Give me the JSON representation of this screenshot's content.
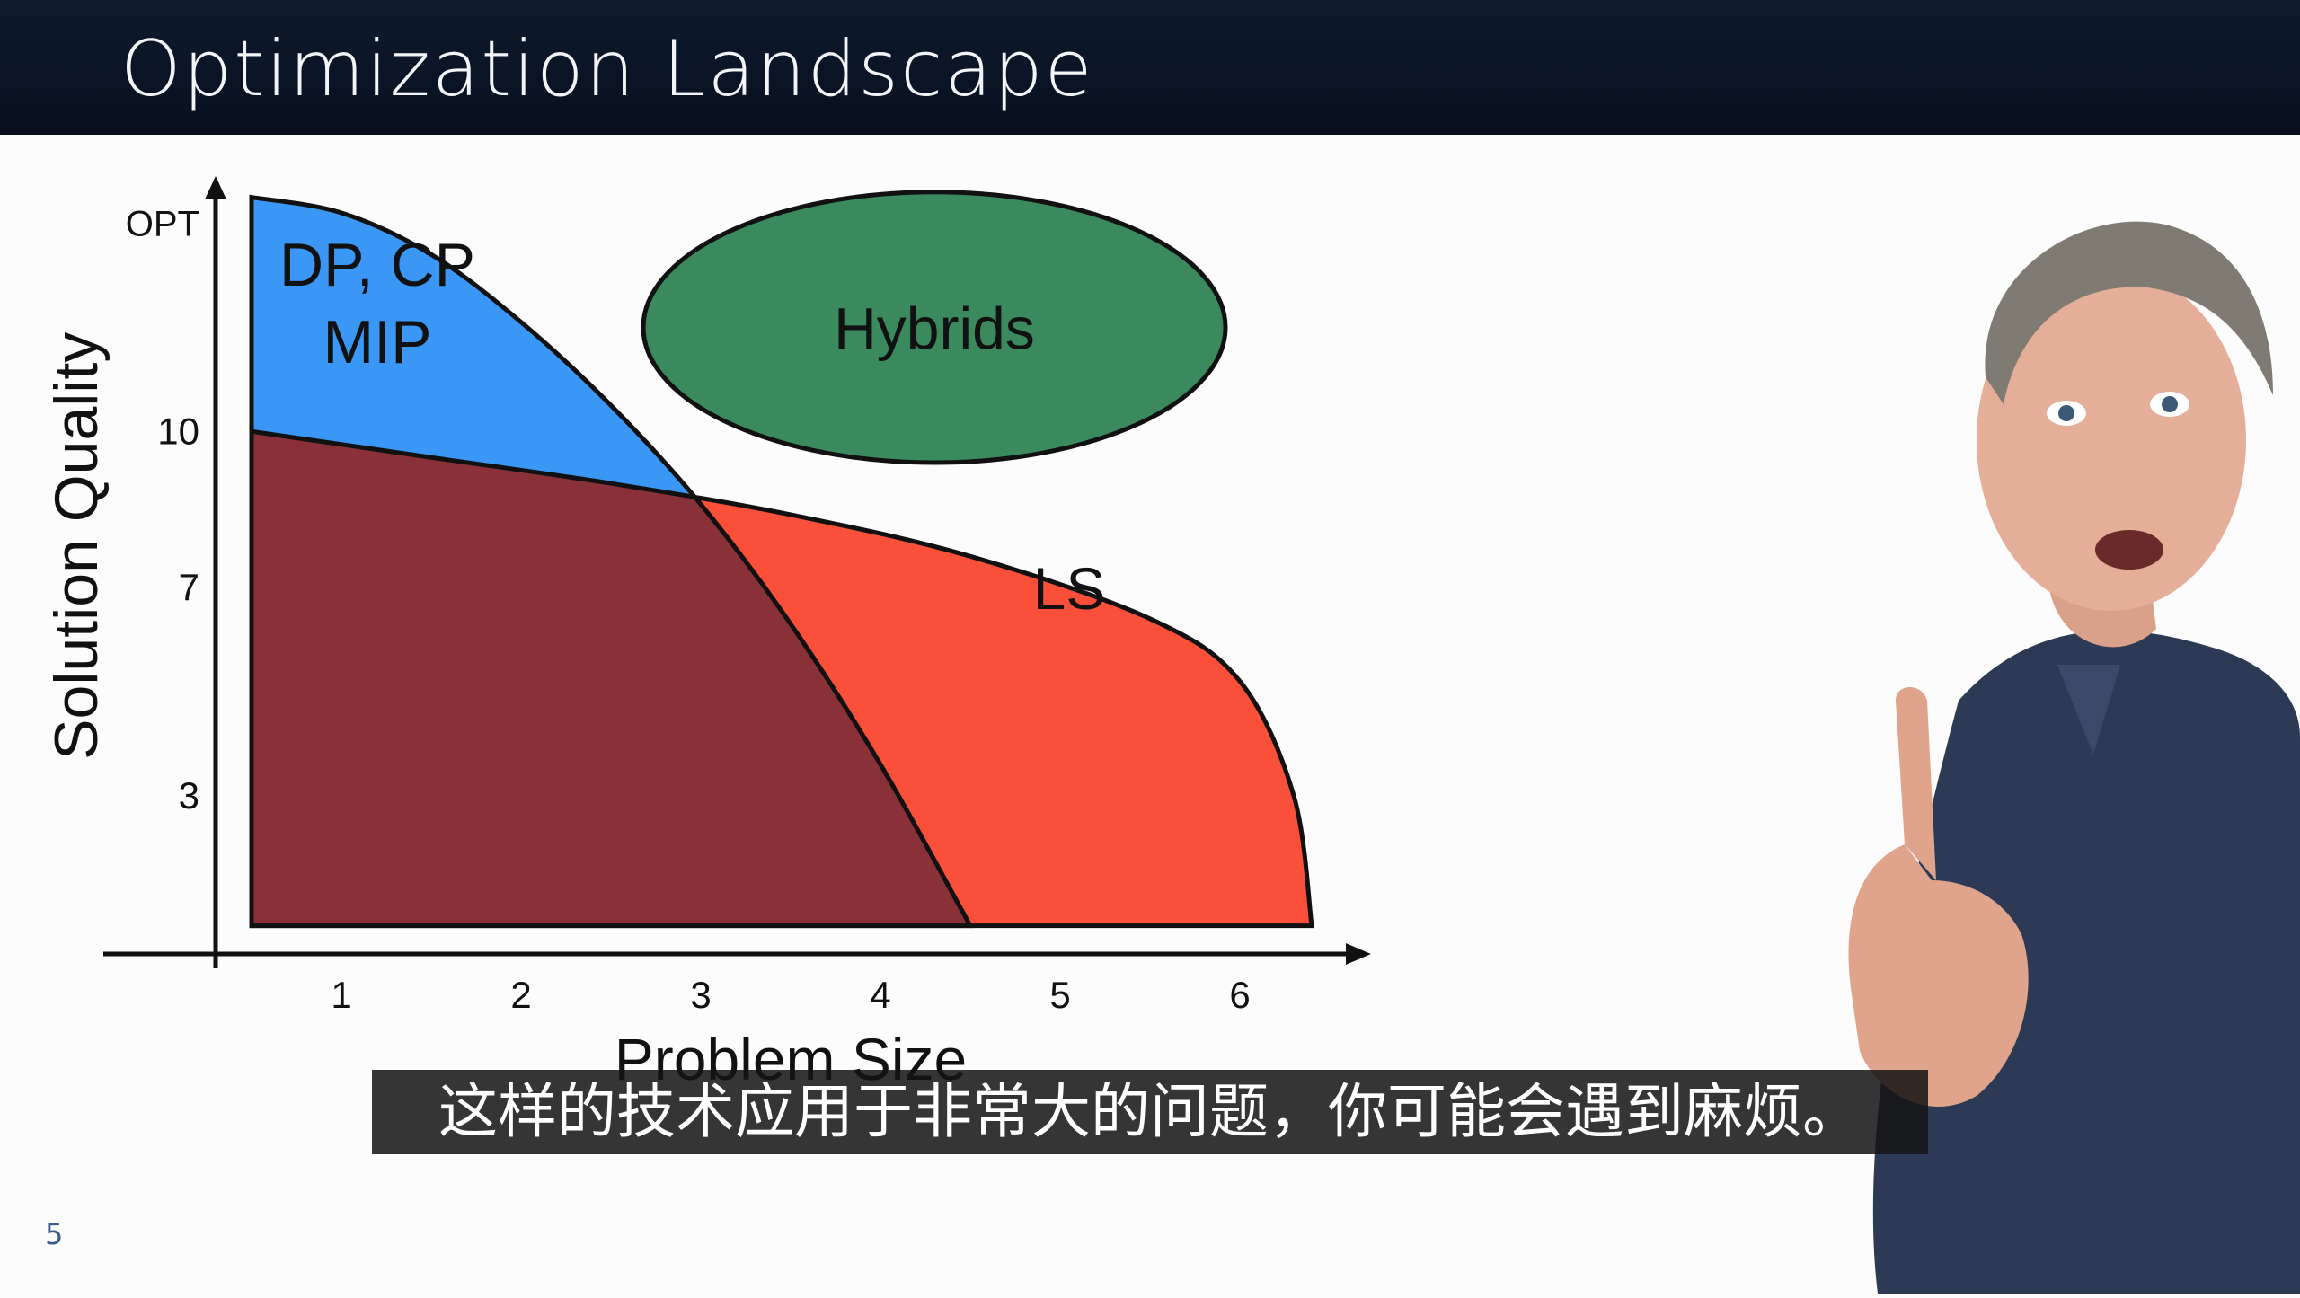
{
  "slide": {
    "title": "Optimization Landscape",
    "page_number": "5",
    "subtitle": "这样的技术应用于非常大的问题，你可能会遇到麻烦。"
  },
  "colors": {
    "title_bar": "#0a1426",
    "exact_region": "#3a97f5",
    "ls_region": "#fa503a",
    "overlap_region": "#8a3138",
    "hybrids": "#3a8a5e",
    "subtitle_bg": "#141414"
  },
  "chart_data": {
    "type": "area",
    "title": "",
    "xlabel": "Problem Size",
    "ylabel": "Solution Quality",
    "x_ticks": [
      "1",
      "2",
      "3",
      "4",
      "5",
      "6"
    ],
    "y_ticks": [
      "3",
      "7",
      "10",
      "OPT"
    ],
    "y_tick_values": [
      3,
      7,
      10,
      14
    ],
    "xlim": [
      0.3,
      6.55
    ],
    "ylim": [
      0.2,
      14.7
    ],
    "grid": false,
    "series": [
      {
        "name": "DP, CP\nMIP",
        "label_lines": [
          "DP, CP",
          "MIP"
        ],
        "color": "#3a97f5",
        "x": [
          0.5,
          1.0,
          1.5,
          2.0,
          2.5,
          3.0,
          3.5,
          4.0,
          4.5
        ],
        "y": [
          14.5,
          14.2,
          13.4,
          12.1,
          10.5,
          8.6,
          6.3,
          3.6,
          0.5
        ]
      },
      {
        "name": "LS",
        "label_lines": [
          "LS"
        ],
        "color": "#fa503a",
        "x": [
          0.5,
          1.5,
          2.5,
          3.5,
          4.5,
          5.5,
          6.0,
          6.3,
          6.4
        ],
        "y": [
          10.0,
          9.5,
          9.0,
          8.4,
          7.6,
          6.4,
          5.2,
          3.0,
          0.5
        ]
      }
    ],
    "ellipse": {
      "label": "Hybrids",
      "color": "#3a8a5e",
      "cx": 4.3,
      "cy": 12.0,
      "rx_data": 1.62,
      "ry_data": 2.6
    },
    "overlap_color": "#8a3138",
    "baseline": 0.5
  }
}
